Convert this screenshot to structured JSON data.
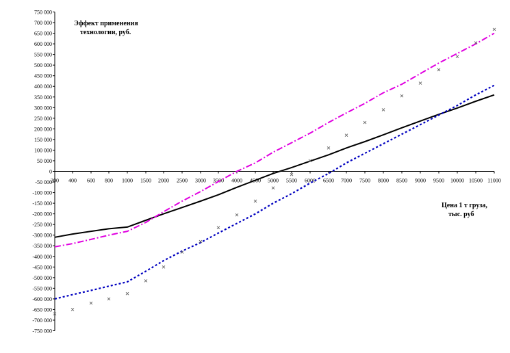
{
  "chart_data": {
    "type": "line",
    "title": "",
    "annotations": {
      "y_title_lines": [
        "Эффект применения",
        "технологии, руб."
      ],
      "x_title_lines": [
        "Цена 1 т груза,",
        "тыс. руб"
      ]
    },
    "categories": [
      "200",
      "400",
      "600",
      "800",
      "1000",
      "1500",
      "2000",
      "2500",
      "3000",
      "3500",
      "4000",
      "4500",
      "5000",
      "5500",
      "6000",
      "6500",
      "7000",
      "7500",
      "8000",
      "8500",
      "9000",
      "9500",
      "10000",
      "10500",
      "11000"
    ],
    "ylim": [
      -750000,
      750000
    ],
    "ytick_step": 50000,
    "ytick_labels": [
      "750 000",
      "700 000",
      "650 000",
      "600 000",
      "550 000",
      "500 000",
      "450 000",
      "400 000",
      "350 000",
      "300 000",
      "250 000",
      "200 000",
      "150 000",
      "100 000",
      "50 000",
      "0",
      "-50 000",
      "-100 000",
      "-150 000",
      "-200 000",
      "-250 000",
      "-300 000",
      "-350 000",
      "-400 000",
      "-450 000",
      "-500 000",
      "-550 000",
      "-600 000",
      "-650 000",
      "-700 000",
      "-750 000"
    ],
    "grid": false,
    "legend": "none",
    "series": [
      {
        "style": "solid",
        "color": "#000000",
        "values": [
          -310000,
          -295000,
          -282000,
          -270000,
          -262000,
          -230000,
          -200000,
          -170000,
          -140000,
          -110000,
          -75000,
          -42000,
          -10000,
          18000,
          48000,
          78000,
          110000,
          140000,
          172000,
          205000,
          237000,
          268000,
          298000,
          330000,
          360000
        ]
      },
      {
        "style": "dash-dot",
        "color": "#e000e0",
        "values": [
          -355000,
          -340000,
          -320000,
          -300000,
          -282000,
          -240000,
          -190000,
          -140000,
          -95000,
          -48000,
          0,
          40000,
          90000,
          135000,
          180000,
          230000,
          275000,
          320000,
          370000,
          410000,
          460000,
          510000,
          555000,
          600000,
          650000
        ]
      },
      {
        "style": "dotted",
        "color": "#0000c0",
        "values": [
          -600000,
          -580000,
          -560000,
          -540000,
          -520000,
          -470000,
          -420000,
          -375000,
          -335000,
          -290000,
          -245000,
          -200000,
          -150000,
          -105000,
          -55000,
          -10000,
          40000,
          85000,
          130000,
          175000,
          220000,
          265000,
          310000,
          360000,
          405000
        ]
      },
      {
        "style": "markers",
        "marker": "x",
        "color": "#666666",
        "values": [
          -670000,
          -650000,
          -620000,
          -600000,
          -575000,
          -515000,
          -450000,
          -380000,
          -330000,
          -265000,
          -205000,
          -140000,
          -78000,
          -15000,
          50000,
          110000,
          170000,
          230000,
          290000,
          355000,
          415000,
          478000,
          540000,
          605000,
          668000
        ]
      }
    ]
  }
}
